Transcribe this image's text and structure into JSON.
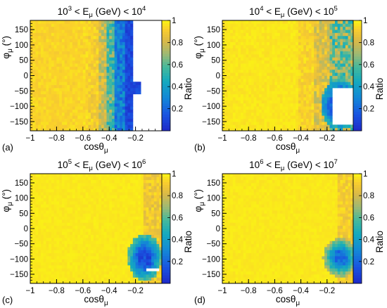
{
  "chart_data": [
    {
      "type": "heatmap",
      "panel_tag": "(a)",
      "title": {
        "base": "10",
        "exp1": "3",
        "mid": " < E",
        "sub": "μ",
        "after": " (GeV) < 10",
        "exp2": "4"
      },
      "xlabel": {
        "base": "cosθ",
        "sub": "μ"
      },
      "ylabel": {
        "base": "φ",
        "sub": "μ",
        "after": " (°)"
      },
      "zlabel": "Ratio",
      "xlim": [
        -1,
        0
      ],
      "ylim": [
        -180,
        180
      ],
      "zlim": [
        0,
        1
      ],
      "xticks": [
        -1,
        -0.8,
        -0.6,
        -0.4,
        -0.2
      ],
      "xtick_labels": [
        "−1",
        "−0.8",
        "−0.6",
        "−0.4",
        "−0.2"
      ],
      "yticks": [
        -150,
        -100,
        -50,
        0,
        50,
        100,
        150
      ],
      "ytick_labels": [
        "−150",
        "−100",
        "−50",
        "0",
        "50",
        "100",
        "150"
      ],
      "zticks": [
        0.2,
        0.4,
        0.6,
        0.8,
        1
      ],
      "ztick_labels": [
        "0.2",
        "0.4",
        "0.6",
        "0.8",
        "1"
      ],
      "edge_cos": [
        -0.52,
        -0.44,
        -0.38,
        -0.3,
        -0.22
      ],
      "empty_region": "cosθ > -0.22 (most φ)"
    },
    {
      "type": "heatmap",
      "panel_tag": "(b)",
      "title": {
        "base": "10",
        "exp1": "4",
        "mid": " < E",
        "sub": "μ",
        "after": " (GeV) < 10",
        "exp2": "5"
      },
      "xlabel": {
        "base": "cosθ",
        "sub": "μ"
      },
      "ylabel": {
        "base": "φ",
        "sub": "μ",
        "after": " (°)"
      },
      "zlabel": "Ratio",
      "xlim": [
        -1,
        0
      ],
      "ylim": [
        -180,
        180
      ],
      "zlim": [
        0,
        1
      ],
      "xticks": [
        -1,
        -0.8,
        -0.6,
        -0.4,
        -0.2
      ],
      "xtick_labels": [
        "−1",
        "−0.8",
        "−0.6",
        "−0.4",
        "−0.2"
      ],
      "yticks": [
        -150,
        -100,
        -50,
        0,
        50,
        100,
        150
      ],
      "ytick_labels": [
        "−150",
        "−100",
        "−50",
        "0",
        "50",
        "100",
        "150"
      ],
      "zticks": [
        0.2,
        0.4,
        0.6,
        0.8,
        1
      ],
      "ztick_labels": [
        "0.2",
        "0.4",
        "0.6",
        "0.8",
        "1"
      ],
      "low_region": {
        "cos_center": -0.1,
        "phi_center": -95,
        "cos_radius": 0.13,
        "phi_radius": 70
      },
      "empty_region": {
        "cos_range": [
          -0.16,
          0
        ],
        "phi_range": [
          -165,
          -35
        ]
      }
    },
    {
      "type": "heatmap",
      "panel_tag": "(c)",
      "title": {
        "base": "10",
        "exp1": "5",
        "mid": " < E",
        "sub": "μ",
        "after": " (GeV) < 10",
        "exp2": "6"
      },
      "xlabel": {
        "base": "cosθ",
        "sub": "μ"
      },
      "ylabel": {
        "base": "φ",
        "sub": "μ",
        "after": " (°)"
      },
      "zlabel": "Ratio",
      "xlim": [
        -1,
        0
      ],
      "ylim": [
        -180,
        180
      ],
      "zlim": [
        0,
        1
      ],
      "xticks": [
        -1,
        -0.8,
        -0.6,
        -0.4,
        -0.2
      ],
      "xtick_labels": [
        "−1",
        "−0.8",
        "−0.6",
        "−0.4",
        "−0.2"
      ],
      "yticks": [
        -150,
        -100,
        -50,
        0,
        50,
        100,
        150
      ],
      "ytick_labels": [
        "−150",
        "−100",
        "−50",
        "0",
        "50",
        "100",
        "150"
      ],
      "zticks": [
        0.2,
        0.4,
        0.6,
        0.8,
        1
      ],
      "ztick_labels": [
        "0.2",
        "0.4",
        "0.6",
        "0.8",
        "1"
      ],
      "low_region": {
        "cos_center": -0.13,
        "phi_center": -95,
        "cos_radius": 0.1,
        "phi_radius": 60
      },
      "empty_region": {
        "cos_range": [
          -0.12,
          -0.02
        ],
        "phi_range": [
          -138,
          -125
        ]
      }
    },
    {
      "type": "heatmap",
      "panel_tag": "(d)",
      "title": {
        "base": "10",
        "exp1": "6",
        "mid": " < E",
        "sub": "μ",
        "after": " (GeV) < 10",
        "exp2": "7"
      },
      "xlabel": {
        "base": "cosθ",
        "sub": "μ"
      },
      "ylabel": {
        "base": "φ",
        "sub": "μ",
        "after": " (°)"
      },
      "zlabel": "Ratio",
      "xlim": [
        -1,
        0
      ],
      "ylim": [
        -180,
        180
      ],
      "zlim": [
        0,
        1
      ],
      "xticks": [
        -1,
        -0.8,
        -0.6,
        -0.4,
        -0.2
      ],
      "xtick_labels": [
        "−1",
        "−0.8",
        "−0.6",
        "−0.4",
        "−0.2"
      ],
      "yticks": [
        -150,
        -100,
        -50,
        0,
        50,
        100,
        150
      ],
      "ytick_labels": [
        "−150",
        "−100",
        "−50",
        "0",
        "50",
        "100",
        "150"
      ],
      "zticks": [
        0.2,
        0.4,
        0.6,
        0.8,
        1
      ],
      "ztick_labels": [
        "0.2",
        "0.4",
        "0.6",
        "0.8",
        "1"
      ],
      "low_region": {
        "cos_center": -0.1,
        "phi_center": -95,
        "cos_radius": 0.1,
        "phi_radius": 50
      }
    }
  ]
}
